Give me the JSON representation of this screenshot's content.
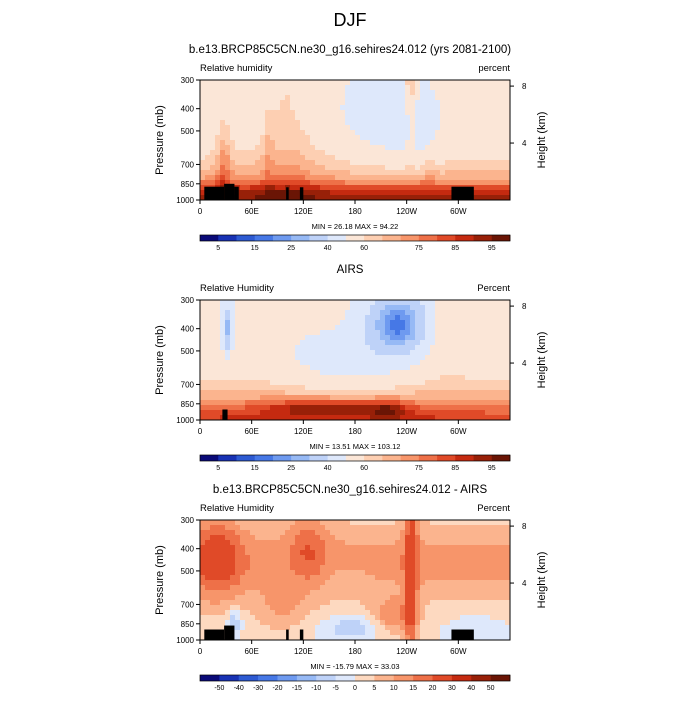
{
  "page_title": "DJF",
  "chart_data": [
    {
      "type": "heatmap",
      "title": "b.e13.BRCP85C5CN.ne30_g16.sehires24.012 (yrs 2081-2100)",
      "left_label": "Relative humidity",
      "right_label": "percent",
      "ylabel": "Pressure (mb)",
      "y2label": "Height (km)",
      "x_ticks": [
        "0",
        "60E",
        "120E",
        "180",
        "120W",
        "60W"
      ],
      "y_ticks": [
        "300",
        "400",
        "500",
        "700",
        "850",
        "1000"
      ],
      "y2_ticks": [
        "8",
        "4"
      ],
      "stats": "MIN = 26.18  MAX = 94.22",
      "min": 26.18,
      "max": 94.22,
      "levels": [
        5,
        10,
        15,
        20,
        25,
        30,
        40,
        50,
        60,
        65,
        70,
        75,
        80,
        85,
        90,
        95
      ],
      "colorbar_labels": [
        "5",
        "15",
        "25",
        "40",
        "60",
        "75",
        "85",
        "95"
      ],
      "colors": [
        "#0a0a78",
        "#1832b4",
        "#2d5ad2",
        "#4678e6",
        "#6e9af0",
        "#96b9f5",
        "#bed2f8",
        "#dee8fb",
        "#fbe6d7",
        "#fdcfb2",
        "#fbb48e",
        "#f7956a",
        "#ee7048",
        "#e04a28",
        "#c52a10",
        "#982008",
        "#6a1505"
      ]
    },
    {
      "type": "heatmap",
      "title": "AIRS",
      "left_label": "Relative Humidity",
      "right_label": "Percent",
      "ylabel": "Pressure (mb)",
      "y2label": "Height (km)",
      "x_ticks": [
        "0",
        "60E",
        "120E",
        "180",
        "120W",
        "60W"
      ],
      "y_ticks": [
        "300",
        "400",
        "500",
        "700",
        "850",
        "1000"
      ],
      "y2_ticks": [
        "8",
        "4"
      ],
      "stats": "MIN = 13.51  MAX = 103.12",
      "min": 13.51,
      "max": 103.12,
      "levels": [
        5,
        10,
        15,
        20,
        25,
        30,
        40,
        50,
        60,
        65,
        70,
        75,
        80,
        85,
        90,
        95
      ],
      "colorbar_labels": [
        "5",
        "15",
        "25",
        "40",
        "60",
        "75",
        "85",
        "95"
      ],
      "colors": [
        "#0a0a78",
        "#1832b4",
        "#2d5ad2",
        "#4678e6",
        "#6e9af0",
        "#96b9f5",
        "#bed2f8",
        "#dee8fb",
        "#fbe6d7",
        "#fdcfb2",
        "#fbb48e",
        "#f7956a",
        "#ee7048",
        "#e04a28",
        "#c52a10",
        "#982008",
        "#6a1505"
      ]
    },
    {
      "type": "heatmap",
      "title": "b.e13.BRCP85C5CN.ne30_g16.sehires24.012 - AIRS",
      "left_label": "Relative Humidity",
      "right_label": "Percent",
      "ylabel": "Pressure (mb)",
      "y2label": "Height (km)",
      "x_ticks": [
        "0",
        "60E",
        "120E",
        "180",
        "120W",
        "60W"
      ],
      "y_ticks": [
        "300",
        "400",
        "500",
        "700",
        "850",
        "1000"
      ],
      "y2_ticks": [
        "8",
        "4"
      ],
      "stats": "MIN = -15.79  MAX = 33.03",
      "min": -15.79,
      "max": 33.03,
      "levels": [
        -50,
        -40,
        -30,
        -20,
        -15,
        -10,
        -5,
        0,
        5,
        10,
        15,
        20,
        30,
        40,
        50
      ],
      "colorbar_labels": [
        "-50",
        "-40",
        "-30",
        "-20",
        "-15",
        "-10",
        "-5",
        "0",
        "5",
        "10",
        "15",
        "20",
        "30",
        "40",
        "50"
      ],
      "colors": [
        "#0a0a78",
        "#1832b4",
        "#2d5ad2",
        "#4678e6",
        "#6e9af0",
        "#96b9f5",
        "#bed2f8",
        "#dee8fb",
        "#fdd9c0",
        "#fbb48e",
        "#f7956a",
        "#ee7048",
        "#e04a28",
        "#c52a10",
        "#982008",
        "#6a1505"
      ]
    }
  ]
}
